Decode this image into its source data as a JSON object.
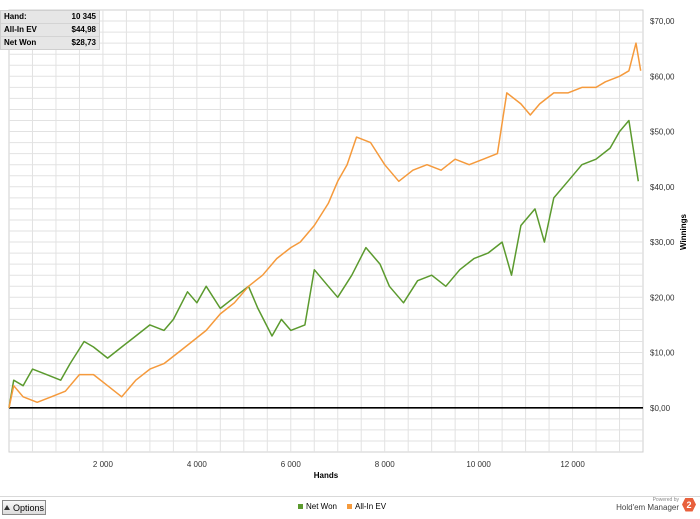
{
  "stats": [
    {
      "label": "Hand:",
      "value": "10 345"
    },
    {
      "label": "All-In EV",
      "value": "$44,98"
    },
    {
      "label": "Net Won",
      "value": "$28,73"
    }
  ],
  "footer": {
    "options_label": "Options",
    "brand_powered": "Powered by",
    "brand_name": "Hold'em Manager",
    "brand_logo": "2"
  },
  "colors": {
    "net_won": "#5b9a2e",
    "all_in_ev": "#f59a3c",
    "zero_line": "#000000",
    "grid": "#e2e2e2"
  },
  "chart_data": {
    "type": "line",
    "title": "",
    "xlabel": "Hands",
    "ylabel": "Winnings",
    "xlim": [
      0,
      13500
    ],
    "ylim": [
      -8,
      72
    ],
    "x_ticks": [
      2000,
      4000,
      6000,
      8000,
      10000,
      12000
    ],
    "x_tick_labels": [
      "2 000",
      "4 000",
      "6 000",
      "8 000",
      "10 000",
      "12 000"
    ],
    "y_ticks": [
      0,
      10,
      20,
      30,
      40,
      50,
      60,
      70
    ],
    "y_tick_labels": [
      "$0,00",
      "$10,00",
      "$20,00",
      "$30,00",
      "$40,00",
      "$50,00",
      "$60,00",
      "$70,00"
    ],
    "grid": true,
    "legend_position": "bottom-center",
    "series": [
      {
        "name": "Net Won",
        "color": "#5b9a2e",
        "points": [
          [
            0,
            0
          ],
          [
            100,
            5
          ],
          [
            300,
            4
          ],
          [
            500,
            7
          ],
          [
            800,
            6
          ],
          [
            1100,
            5
          ],
          [
            1300,
            8
          ],
          [
            1600,
            12
          ],
          [
            1800,
            11
          ],
          [
            2100,
            9
          ],
          [
            2400,
            11
          ],
          [
            2700,
            13
          ],
          [
            3000,
            15
          ],
          [
            3300,
            14
          ],
          [
            3500,
            16
          ],
          [
            3800,
            21
          ],
          [
            4000,
            19
          ],
          [
            4200,
            22
          ],
          [
            4500,
            18
          ],
          [
            4800,
            20
          ],
          [
            5100,
            22
          ],
          [
            5300,
            18
          ],
          [
            5600,
            13
          ],
          [
            5800,
            16
          ],
          [
            6000,
            14
          ],
          [
            6300,
            15
          ],
          [
            6500,
            25
          ],
          [
            6800,
            22
          ],
          [
            7000,
            20
          ],
          [
            7300,
            24
          ],
          [
            7600,
            29
          ],
          [
            7900,
            26
          ],
          [
            8100,
            22
          ],
          [
            8400,
            19
          ],
          [
            8700,
            23
          ],
          [
            9000,
            24
          ],
          [
            9300,
            22
          ],
          [
            9600,
            25
          ],
          [
            9900,
            27
          ],
          [
            10200,
            28
          ],
          [
            10500,
            30
          ],
          [
            10700,
            24
          ],
          [
            10900,
            33
          ],
          [
            11200,
            36
          ],
          [
            11400,
            30
          ],
          [
            11600,
            38
          ],
          [
            11900,
            41
          ],
          [
            12200,
            44
          ],
          [
            12500,
            45
          ],
          [
            12800,
            47
          ],
          [
            13000,
            50
          ],
          [
            13200,
            52
          ],
          [
            13400,
            41
          ]
        ]
      },
      {
        "name": "All-In EV",
        "color": "#f59a3c",
        "points": [
          [
            0,
            0
          ],
          [
            100,
            4
          ],
          [
            300,
            2
          ],
          [
            600,
            1
          ],
          [
            900,
            2
          ],
          [
            1200,
            3
          ],
          [
            1500,
            6
          ],
          [
            1800,
            6
          ],
          [
            2100,
            4
          ],
          [
            2400,
            2
          ],
          [
            2700,
            5
          ],
          [
            3000,
            7
          ],
          [
            3300,
            8
          ],
          [
            3600,
            10
          ],
          [
            3900,
            12
          ],
          [
            4200,
            14
          ],
          [
            4500,
            17
          ],
          [
            4800,
            19
          ],
          [
            5100,
            22
          ],
          [
            5400,
            24
          ],
          [
            5700,
            27
          ],
          [
            6000,
            29
          ],
          [
            6200,
            30
          ],
          [
            6500,
            33
          ],
          [
            6800,
            37
          ],
          [
            7000,
            41
          ],
          [
            7200,
            44
          ],
          [
            7400,
            49
          ],
          [
            7700,
            48
          ],
          [
            8000,
            44
          ],
          [
            8300,
            41
          ],
          [
            8600,
            43
          ],
          [
            8900,
            44
          ],
          [
            9200,
            43
          ],
          [
            9500,
            45
          ],
          [
            9800,
            44
          ],
          [
            10100,
            45
          ],
          [
            10400,
            46
          ],
          [
            10600,
            57
          ],
          [
            10900,
            55
          ],
          [
            11100,
            53
          ],
          [
            11300,
            55
          ],
          [
            11600,
            57
          ],
          [
            11900,
            57
          ],
          [
            12200,
            58
          ],
          [
            12500,
            58
          ],
          [
            12700,
            59
          ],
          [
            13000,
            60
          ],
          [
            13200,
            61
          ],
          [
            13350,
            66
          ],
          [
            13450,
            61
          ]
        ]
      }
    ]
  }
}
